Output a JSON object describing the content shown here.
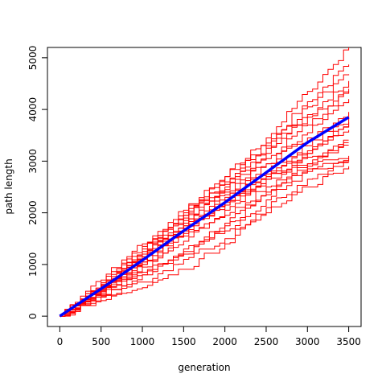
{
  "chart_data": {
    "type": "line",
    "title": "",
    "xlabel": "generation",
    "ylabel": "path length",
    "xlim": [
      -150,
      3650
    ],
    "ylim": [
      -200,
      5200
    ],
    "x_ticks": [
      0,
      500,
      1000,
      1500,
      2000,
      2500,
      3000,
      3500
    ],
    "y_ticks": [
      0,
      1000,
      2000,
      3000,
      4000,
      5000
    ],
    "grid": false,
    "legend": "none",
    "colors": {
      "individual": "#ff0000",
      "mean": "#0000ff"
    },
    "x": [
      0,
      500,
      1000,
      1500,
      2000,
      2500,
      3000,
      3500
    ],
    "series": [
      {
        "values": [
          0,
          650,
          1350,
          2050,
          2700,
          3450,
          4350,
          5200
        ]
      },
      {
        "values": [
          0,
          600,
          1250,
          1950,
          2600,
          3350,
          4150,
          4870
        ]
      },
      {
        "values": [
          0,
          620,
          1300,
          1950,
          2550,
          3300,
          4050,
          4680
        ]
      },
      {
        "values": [
          0,
          560,
          1200,
          1900,
          2500,
          3150,
          3900,
          4550
        ]
      },
      {
        "values": [
          0,
          700,
          1400,
          2000,
          2700,
          3250,
          3850,
          4400
        ]
      },
      {
        "values": [
          0,
          580,
          1150,
          1800,
          2450,
          3050,
          3700,
          4350
        ]
      },
      {
        "values": [
          0,
          540,
          1100,
          1750,
          2350,
          2950,
          3550,
          4200
        ]
      },
      {
        "values": [
          0,
          600,
          1200,
          1850,
          2400,
          2950,
          3450,
          3950
        ]
      },
      {
        "values": [
          0,
          520,
          1100,
          1700,
          2250,
          2800,
          3300,
          3850
        ]
      },
      {
        "values": [
          0,
          500,
          1050,
          1650,
          2150,
          2700,
          3200,
          3750
        ]
      },
      {
        "values": [
          0,
          480,
          1000,
          1550,
          2050,
          2650,
          3150,
          3700
        ]
      },
      {
        "values": [
          0,
          560,
          1150,
          1750,
          2300,
          2750,
          3150,
          3600
        ]
      },
      {
        "values": [
          0,
          450,
          950,
          1450,
          1950,
          2500,
          2950,
          3400
        ]
      },
      {
        "values": [
          0,
          520,
          1050,
          1650,
          2200,
          2700,
          3050,
          3350
        ]
      },
      {
        "values": [
          0,
          400,
          850,
          1300,
          1800,
          2400,
          2900,
          3300
        ]
      },
      {
        "values": [
          0,
          480,
          1000,
          1600,
          2150,
          2650,
          2950,
          3100
        ]
      },
      {
        "values": [
          0,
          380,
          800,
          1200,
          1650,
          2250,
          2800,
          3050
        ]
      },
      {
        "values": [
          0,
          420,
          800,
          1250,
          1750,
          2350,
          2850,
          3000
        ]
      },
      {
        "values": [
          0,
          350,
          550,
          900,
          1400,
          2100,
          2650,
          2950
        ]
      },
      {
        "values": [
          0,
          300,
          650,
          1100,
          1500,
          2000,
          2500,
          2900
        ]
      }
    ],
    "mean": {
      "values": [
        0,
        530,
        1080,
        1650,
        2200,
        2780,
        3360,
        3850
      ]
    }
  }
}
